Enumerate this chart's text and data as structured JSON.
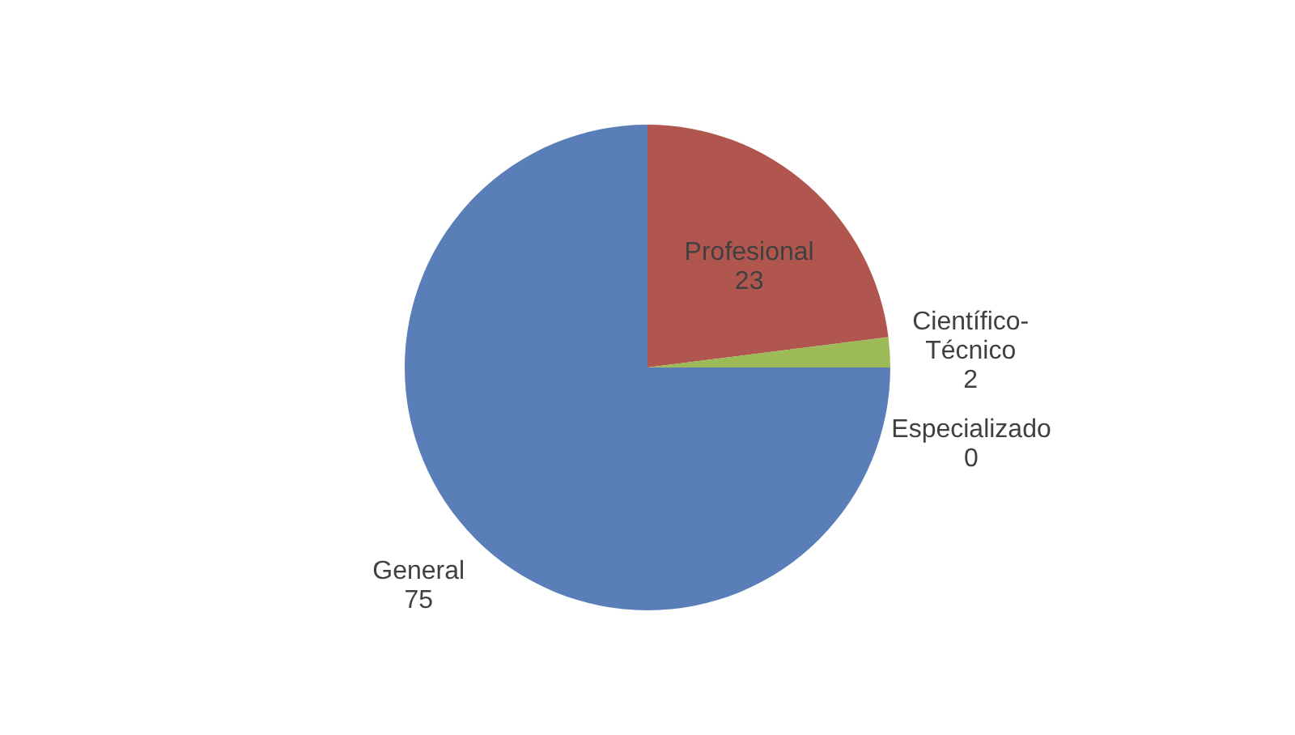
{
  "chart_data": {
    "type": "pie",
    "categories": [
      "Profesional",
      "Científico-Técnico",
      "Especializado",
      "General"
    ],
    "values": [
      23,
      2,
      0,
      75
    ],
    "colors": [
      "#b0564f",
      "#9bbb59",
      "#8064a2",
      "#5a7eb8"
    ],
    "value_labels": [
      "23",
      "2",
      "0",
      "75"
    ],
    "legend": false
  }
}
